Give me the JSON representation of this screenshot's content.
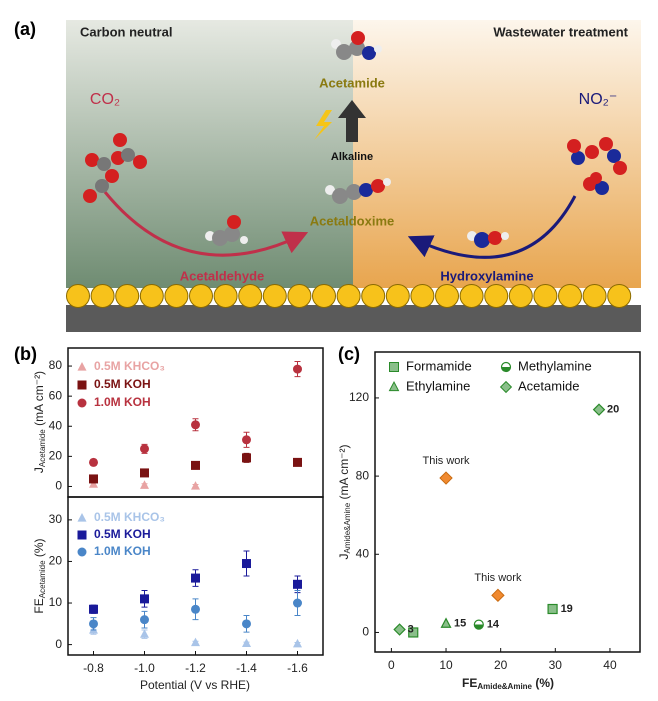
{
  "diagram": {
    "panel": "(a)",
    "left_title": "Carbon neutral",
    "right_title": "Wastewater treatment",
    "product": "Acetamide",
    "co2": "CO₂",
    "no2": "NO₂⁻",
    "condition": "Alkaline",
    "intermediate": "Acetaldoxime",
    "left_reactant": "Acetaldehyde",
    "right_reactant": "Hydroxylamine"
  },
  "panels": {
    "b": "(b)",
    "c": "(c)"
  },
  "chart_data": [
    {
      "type": "scatter",
      "ylabel": {
        "main": "J",
        "sub": "Acetamide",
        "unit": " (mA cm⁻²)"
      },
      "xlim": [
        -0.7,
        -1.7
      ],
      "ylim": [
        -7,
        92
      ],
      "yticks": [
        0,
        20,
        40,
        60,
        80
      ],
      "series": [
        {
          "name": "0.5M KHCO₃",
          "color": "#e8a3a3",
          "marker": "triangle",
          "x": [
            -0.8,
            -1.0,
            -1.2
          ],
          "values": [
            1.5,
            0.8,
            0.3
          ],
          "errors": [
            1,
            1,
            1
          ]
        },
        {
          "name": "0.5M KOH",
          "color": "#7a1212",
          "marker": "square",
          "x": [
            -0.8,
            -1.0,
            -1.2,
            -1.4,
            -1.6
          ],
          "values": [
            5,
            9,
            14,
            19,
            16
          ],
          "errors": [
            1,
            1,
            1,
            3,
            2
          ]
        },
        {
          "name": "1.0M KOH",
          "color": "#b8323f",
          "marker": "circle",
          "x": [
            -0.8,
            -1.0,
            -1.2,
            -1.4,
            -1.6
          ],
          "values": [
            16,
            25,
            41,
            31,
            78
          ],
          "errors": [
            2,
            3,
            4,
            5,
            5
          ]
        }
      ]
    },
    {
      "type": "scatter",
      "ylabel": {
        "main": "FE",
        "sub": "Acetamide",
        "unit": " (%)"
      },
      "xlabel": "Potential (V vs RHE)",
      "xlim": [
        -0.7,
        -1.7
      ],
      "xticks": [
        -0.8,
        {
          "value": -1,
          "label": "-1.0"
        },
        -1.2,
        -1.4,
        -1.6
      ],
      "ylim": [
        -2.5,
        35.5
      ],
      "yticks": [
        0,
        10,
        20,
        30
      ],
      "series": [
        {
          "name": "0.5M KHCO₃",
          "color": "#a9c4e8",
          "marker": "triangle",
          "x": [
            -0.8,
            -1.0,
            -1.2,
            -1.4,
            -1.6
          ],
          "values": [
            3.5,
            2.5,
            0.5,
            0.3,
            0.2
          ],
          "errors": [
            1,
            1,
            0.3,
            0.3,
            0.3
          ]
        },
        {
          "name": "0.5M KOH",
          "color": "#1a1a9a",
          "marker": "square",
          "x": [
            -0.8,
            -1.0,
            -1.2,
            -1.4,
            -1.6
          ],
          "values": [
            8.5,
            11,
            16,
            19.5,
            14.5
          ],
          "errors": [
            1,
            2,
            2,
            3,
            2
          ]
        },
        {
          "name": "1.0M KOH",
          "color": "#4a86c8",
          "marker": "circle",
          "x": [
            -0.8,
            -1.0,
            -1.2,
            -1.4,
            -1.6
          ],
          "values": [
            5,
            6,
            8.5,
            5,
            10
          ],
          "errors": [
            1.5,
            2,
            2.5,
            2,
            3
          ]
        }
      ]
    },
    {
      "type": "scatter",
      "ylabel": {
        "main": "J",
        "sub": "Amide&Amine",
        "unit": " (mA cm⁻²)"
      },
      "xlabel": {
        "main": "FE",
        "sub": "Amide&Amine",
        "unit": " (%)"
      },
      "xlim": [
        -3,
        45.5
      ],
      "xticks": [
        0,
        10,
        20,
        30,
        40
      ],
      "ylim": [
        -10,
        143.5
      ],
      "yticks": [
        0,
        40,
        80,
        120
      ],
      "series": [
        {
          "name": "Formamide",
          "color": "#2a8a2a",
          "marker": "square",
          "x": [
            4,
            29.5
          ],
          "values": [
            0,
            12
          ],
          "point_labels": [
            null,
            "19"
          ]
        },
        {
          "name": "Ethylamine",
          "color": "#2a8a2a",
          "marker": "triangle",
          "x": [
            10
          ],
          "values": [
            4.5
          ],
          "point_labels": [
            "15"
          ]
        },
        {
          "name": "Methylamine",
          "color": "#2a8a2a",
          "marker": "half",
          "x": [
            16
          ],
          "values": [
            4
          ],
          "point_labels": [
            "14"
          ]
        },
        {
          "name": "Acetamide",
          "color": "#2a8a2a",
          "marker": "diamond",
          "x": [
            1.5,
            38
          ],
          "values": [
            1.5,
            114
          ],
          "point_labels": [
            "3",
            "20"
          ]
        }
      ],
      "this_work": {
        "color": "#f08a30",
        "x": [
          10,
          19.5
        ],
        "values": [
          79,
          19
        ],
        "labels": [
          "This work",
          "This work"
        ]
      }
    }
  ]
}
